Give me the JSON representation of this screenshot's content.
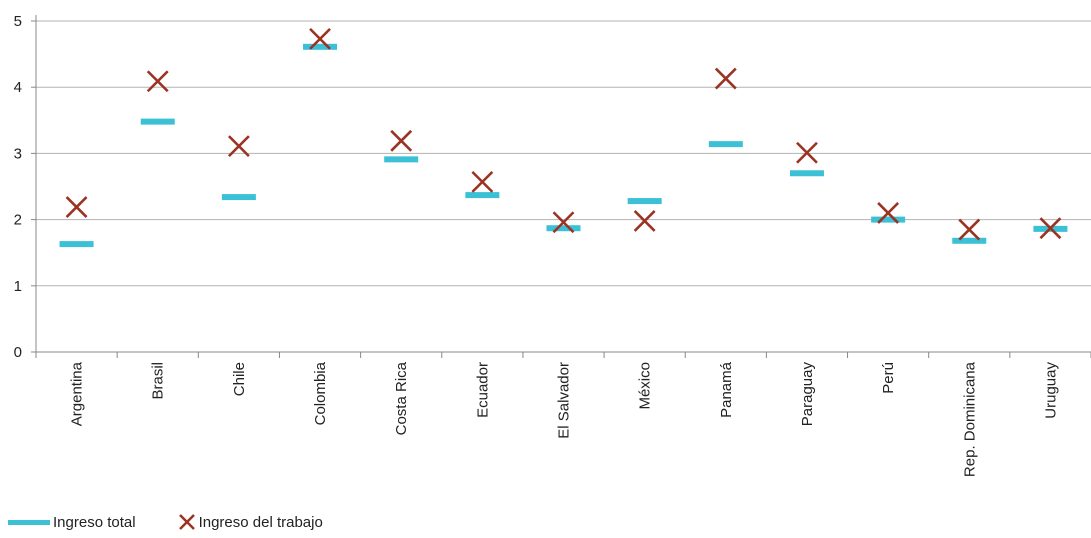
{
  "chart_data": {
    "type": "scatter",
    "categories": [
      "Argentina",
      "Brasil",
      "Chile",
      "Colombia",
      "Costa Rica",
      "Ecuador",
      "El Salvador",
      "México",
      "Panamá",
      "Paraguay",
      "Perú",
      "Rep. Dominicana",
      "Uruguay"
    ],
    "series": [
      {
        "name": "Ingreso total",
        "marker": "dash",
        "color": "#3cc0d6",
        "values": [
          1.63,
          3.48,
          2.34,
          4.61,
          2.91,
          2.37,
          1.87,
          2.28,
          3.14,
          2.7,
          2.0,
          1.68,
          1.86
        ]
      },
      {
        "name": "Ingreso del trabajo",
        "marker": "x",
        "color": "#9b3322",
        "values": [
          2.19,
          4.09,
          3.11,
          4.73,
          3.19,
          2.57,
          1.96,
          1.98,
          4.13,
          3.01,
          2.1,
          1.85,
          1.87
        ]
      }
    ],
    "yticks": [
      "0",
      "1",
      "2",
      "3",
      "4",
      "5"
    ],
    "ylim": [
      0,
      5
    ],
    "grid": "horizontal",
    "legend": "bottom-left",
    "title": "",
    "xlabel": "",
    "ylabel": ""
  }
}
